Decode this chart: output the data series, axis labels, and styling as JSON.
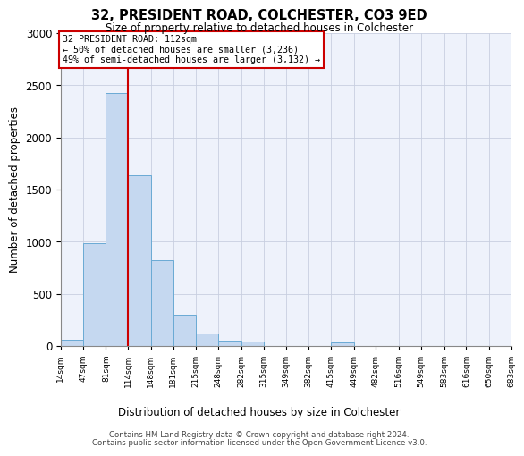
{
  "title1": "32, PRESIDENT ROAD, COLCHESTER, CO3 9ED",
  "title2": "Size of property relative to detached houses in Colchester",
  "xlabel": "Distribution of detached houses by size in Colchester",
  "ylabel": "Number of detached properties",
  "footer1": "Contains HM Land Registry data © Crown copyright and database right 2024.",
  "footer2": "Contains public sector information licensed under the Open Government Licence v3.0.",
  "annotation_line1": "32 PRESIDENT ROAD: 112sqm",
  "annotation_line2": "← 50% of detached houses are smaller (3,236)",
  "annotation_line3": "49% of semi-detached houses are larger (3,132) →",
  "bar_edges": [
    14,
    47,
    81,
    114,
    148,
    181,
    215,
    248,
    282,
    315,
    349,
    382,
    415,
    449,
    482,
    516,
    549,
    583,
    616,
    650,
    683
  ],
  "bar_heights": [
    60,
    990,
    2430,
    1640,
    820,
    300,
    120,
    55,
    45,
    0,
    0,
    0,
    35,
    0,
    0,
    0,
    0,
    0,
    0,
    0
  ],
  "bar_color": "#c5d8f0",
  "bar_edgecolor": "#6aaad4",
  "vline_x": 114,
  "vline_color": "#cc0000",
  "ylim": [
    0,
    3000
  ],
  "yticks": [
    0,
    500,
    1000,
    1500,
    2000,
    2500,
    3000
  ],
  "bg_color": "#eef2fb",
  "annotation_box_color": "#cc0000",
  "grid_color": "#c8cfe0"
}
